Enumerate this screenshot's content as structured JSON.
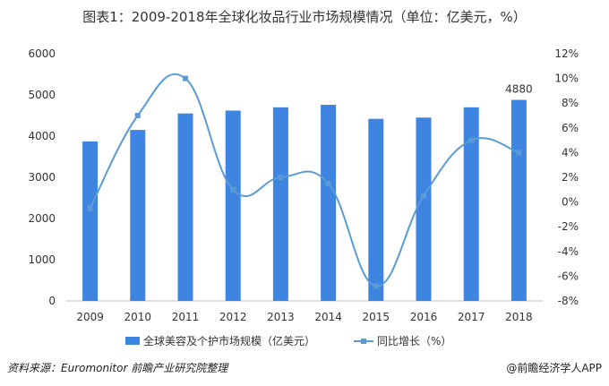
{
  "title": "图表1：2009-2018年全球化妆品行业市场规模情况（单位：亿美元，%）",
  "source": "资料来源：Euromonitor  前瞻产业研究院整理",
  "brand": "@前瞻经济学人APP",
  "colors": {
    "bar": "#3d85e0",
    "line": "#5b9bd5",
    "axis": "#bfbfbf"
  },
  "chart_data": {
    "type": "bar+line",
    "categories": [
      "2009",
      "2010",
      "2011",
      "2012",
      "2013",
      "2014",
      "2015",
      "2016",
      "2017",
      "2018"
    ],
    "series": [
      {
        "name": "全球美容及个护市场规模（亿美元）",
        "type": "bar",
        "axis": "left",
        "values": [
          3870,
          4150,
          4550,
          4620,
          4700,
          4760,
          4420,
          4450,
          4700,
          4880
        ]
      },
      {
        "name": "同比增长（%）",
        "type": "line",
        "axis": "right",
        "values": [
          -0.5,
          7.0,
          10.0,
          1.0,
          2.0,
          1.5,
          -6.8,
          0.5,
          5.0,
          4.0
        ]
      }
    ],
    "data_labels": [
      {
        "index": 9,
        "text": "4880"
      }
    ],
    "y_left": {
      "min": 0,
      "max": 6000,
      "ticks": [
        "0",
        "1000",
        "2000",
        "3000",
        "4000",
        "5000",
        "6000"
      ]
    },
    "y_right": {
      "min": -8,
      "max": 12,
      "ticks": [
        "-8%",
        "-6%",
        "-4%",
        "-2%",
        "0%",
        "2%",
        "4%",
        "6%",
        "8%",
        "10%",
        "12%"
      ]
    },
    "legend_position": "bottom",
    "grid": false
  }
}
